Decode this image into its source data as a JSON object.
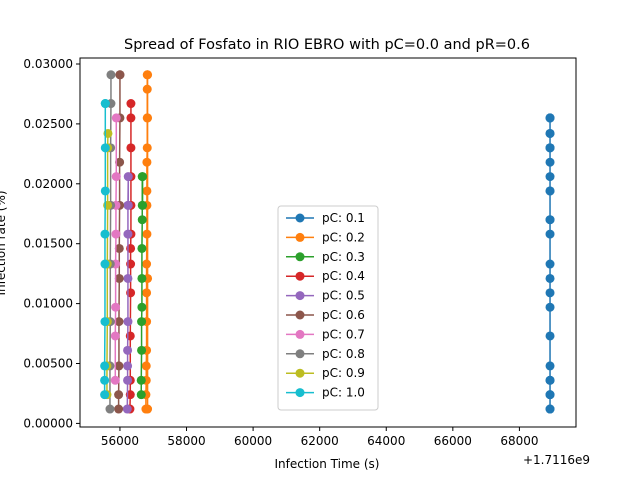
{
  "chart_data": {
    "type": "line",
    "title": "Spread of Fosfato in RIO EBRO with pC=0.0 and pR=0.6",
    "xlabel": "Infection Time (s)",
    "ylabel": "Infection rate (%)",
    "x_offset_label": "+1.7116e9",
    "xlim": [
      1711654800,
      1711669700
    ],
    "ylim": [
      -0.0003,
      0.0305
    ],
    "x_ticks": [
      56000,
      58000,
      60000,
      62000,
      64000,
      66000,
      68000
    ],
    "x_tick_labels": [
      "56000",
      "58000",
      "60000",
      "62000",
      "64000",
      "66000",
      "68000"
    ],
    "y_ticks": [
      0.0,
      0.005,
      0.01,
      0.015,
      0.02,
      0.025,
      0.03
    ],
    "y_tick_labels": [
      "0.00000",
      "0.00500",
      "0.01000",
      "0.01500",
      "0.02000",
      "0.02500",
      "0.03000"
    ],
    "grid": false,
    "legend_position": "lower center",
    "series": [
      {
        "name": "pC: 0.1",
        "color": "#1f77b4",
        "x": [
          1711668920,
          1711668920,
          1711668920,
          1711668920,
          1711668920,
          1711668920,
          1711668920,
          1711668920,
          1711668920,
          1711668920,
          1711668920,
          1711668920,
          1711668920,
          1711668920,
          1711668920,
          1711668920,
          1711668920,
          1711668920,
          1711668920,
          1711668920,
          1711668920,
          1711668920,
          1711668920,
          1711668920,
          1711668920,
          1711668920,
          1711668920
        ],
        "y": [
          0.0012,
          0.0024,
          0.0036,
          0.0048,
          0.0073,
          0.0097,
          0.0109,
          0.0121,
          0.0133,
          0.0158,
          0.017,
          0.017,
          0.0194,
          0.0194,
          0.0206,
          0.0218,
          0.023,
          0.0242,
          0.0255,
          0.0255,
          0.0255,
          0.0242,
          0.023,
          0.023,
          0.0024,
          0.0036,
          0.0012
        ]
      },
      {
        "name": "pC: 0.2",
        "color": "#ff7f0e",
        "x": [
          1711656780,
          1711656780,
          1711656790,
          1711656790,
          1711656800,
          1711656800,
          1711656800,
          1711656800,
          1711656810,
          1711656810,
          1711656810,
          1711656810,
          1711656820,
          1711656820,
          1711656820,
          1711656820,
          1711656830,
          1711656830,
          1711656830,
          1711656830
        ],
        "y": [
          0.0012,
          0.0024,
          0.0036,
          0.0048,
          0.0061,
          0.0085,
          0.0109,
          0.0133,
          0.0158,
          0.0182,
          0.0194,
          0.0218,
          0.023,
          0.0255,
          0.0279,
          0.0291,
          0.0291,
          0.0255,
          0.0121,
          0.0012
        ]
      },
      {
        "name": "pC: 0.3",
        "color": "#2ca02c",
        "x": [
          1711656640,
          1711656640,
          1711656650,
          1711656650,
          1711656660,
          1711656660,
          1711656660,
          1711656670,
          1711656670,
          1711656670,
          1711656680,
          1711656680
        ],
        "y": [
          0.0024,
          0.0036,
          0.0061,
          0.0085,
          0.0097,
          0.0121,
          0.0146,
          0.017,
          0.0182,
          0.0206,
          0.0206,
          0.0182
        ]
      },
      {
        "name": "pC: 0.4",
        "color": "#d62728",
        "x": [
          1711656300,
          1711656310,
          1711656310,
          1711656310,
          1711656320,
          1711656320,
          1711656320,
          1711656330,
          1711656330,
          1711656330,
          1711656330,
          1711656330,
          1711656330
        ],
        "y": [
          0.0012,
          0.0024,
          0.0036,
          0.0073,
          0.0109,
          0.0133,
          0.0146,
          0.0158,
          0.0182,
          0.0206,
          0.023,
          0.0267,
          0.0255
        ]
      },
      {
        "name": "pC: 0.5",
        "color": "#9467bd",
        "x": [
          1711656220,
          1711656230,
          1711656230,
          1711656230,
          1711656240,
          1711656240,
          1711656240,
          1711656240,
          1711656250,
          1711656250
        ],
        "y": [
          0.0012,
          0.0036,
          0.0048,
          0.0061,
          0.0085,
          0.0121,
          0.0158,
          0.0182,
          0.0206,
          0.0182
        ]
      },
      {
        "name": "pC: 0.6",
        "color": "#8c564b",
        "x": [
          1711655960,
          1711655960,
          1711655970,
          1711655970,
          1711655980,
          1711655980,
          1711655990,
          1711655990,
          1711656000,
          1711656000,
          1711656000
        ],
        "y": [
          0.0012,
          0.0024,
          0.0048,
          0.0085,
          0.0121,
          0.0146,
          0.0182,
          0.0218,
          0.0255,
          0.0291,
          0.0291
        ]
      },
      {
        "name": "pC: 0.7",
        "color": "#e377c2",
        "x": [
          1711655860,
          1711655860,
          1711655870,
          1711655870,
          1711655880,
          1711655880,
          1711655890,
          1711655890
        ],
        "y": [
          0.0036,
          0.0073,
          0.0097,
          0.0133,
          0.0158,
          0.0182,
          0.0206,
          0.0255
        ]
      },
      {
        "name": "pC: 0.8",
        "color": "#7f7f7f",
        "x": [
          1711655700,
          1711655700,
          1711655710,
          1711655710,
          1711655720,
          1711655720,
          1711655730,
          1711655730
        ],
        "y": [
          0.0012,
          0.0048,
          0.0085,
          0.0133,
          0.0182,
          0.023,
          0.0267,
          0.0291
        ]
      },
      {
        "name": "pC: 0.9",
        "color": "#bcbd22",
        "x": [
          1711655610,
          1711655610,
          1711655620,
          1711655620,
          1711655630,
          1711655630,
          1711655640
        ],
        "y": [
          0.0024,
          0.0048,
          0.0085,
          0.0133,
          0.0182,
          0.023,
          0.0242
        ]
      },
      {
        "name": "pC: 1.0",
        "color": "#17becf",
        "x": [
          1711655540,
          1711655540,
          1711655540,
          1711655550,
          1711655550,
          1711655550,
          1711655560,
          1711655560,
          1711655560,
          1711655560
        ],
        "y": [
          0.0024,
          0.0036,
          0.0048,
          0.0085,
          0.0133,
          0.0158,
          0.0194,
          0.023,
          0.0267,
          0.0267
        ]
      }
    ]
  }
}
